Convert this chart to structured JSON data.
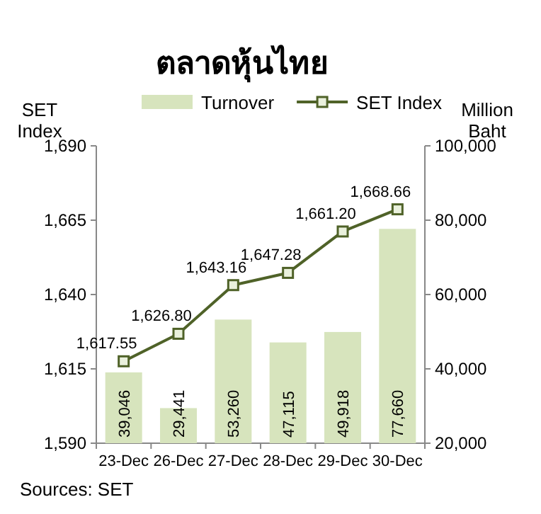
{
  "chart_data": {
    "type": "bar",
    "title": "ตลาดหุ้นไทย",
    "ylabel": "SET Index",
    "y2label": "Million Baht",
    "categories": [
      "23-Dec",
      "26-Dec",
      "27-Dec",
      "28-Dec",
      "29-Dec",
      "30-Dec"
    ],
    "series": [
      {
        "name": "Turnover",
        "axis": "y2",
        "color": "#d7e4bd",
        "values": [
          39046,
          29441,
          53260,
          47115,
          49918,
          77660
        ],
        "value_labels": [
          "39,046",
          "29,441",
          "53,260",
          "47,115",
          "49,918",
          "77,660"
        ]
      },
      {
        "name": "SET Index",
        "type": "line",
        "axis": "y",
        "color": "#4f6228",
        "marker": "square",
        "values": [
          1617.55,
          1626.8,
          1643.16,
          1647.28,
          1661.2,
          1668.66
        ],
        "value_labels": [
          "1,617.55",
          "1,626.80",
          "1,643.16",
          "1,647.28",
          "1,661.20",
          "1,668.66"
        ]
      }
    ],
    "ylim": [
      1590,
      1690
    ],
    "yticks": [
      {
        "value": 1590,
        "label": "1,590"
      },
      {
        "value": 1615,
        "label": "1,615"
      },
      {
        "value": 1640,
        "label": "1,640"
      },
      {
        "value": 1665,
        "label": "1,665"
      },
      {
        "value": 1690,
        "label": "1,690"
      }
    ],
    "y2lim": [
      20000,
      100000
    ],
    "y2ticks": [
      {
        "value": 20000,
        "label": "20,000"
      },
      {
        "value": 40000,
        "label": "40,000"
      },
      {
        "value": 60000,
        "label": "60,000"
      },
      {
        "value": 80000,
        "label": "80,000"
      },
      {
        "value": 100000,
        "label": "100,000"
      }
    ],
    "legend": "top",
    "grid": false,
    "annotations": [
      "Sources: SET"
    ]
  }
}
